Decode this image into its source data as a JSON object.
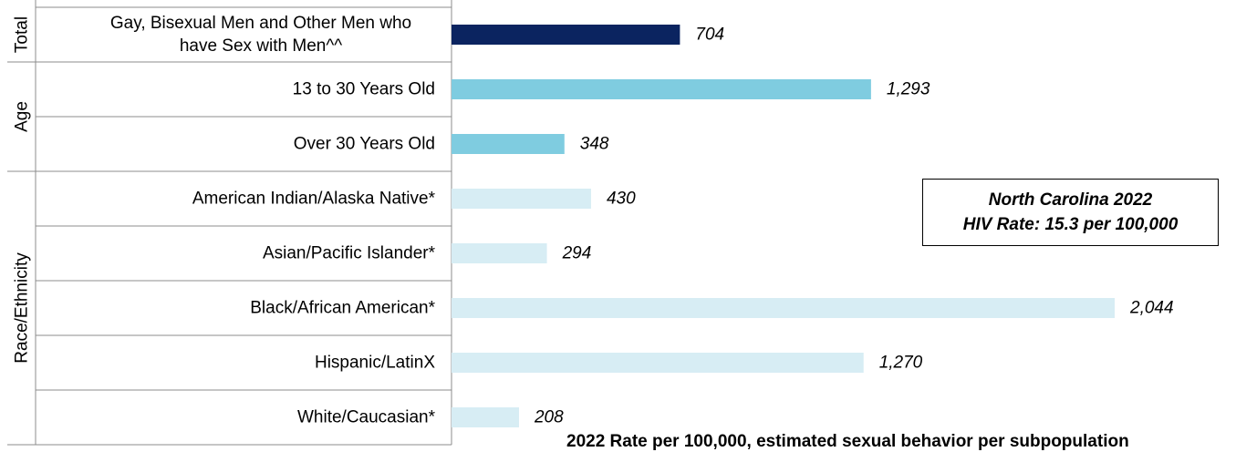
{
  "chart_data": {
    "type": "bar",
    "orientation": "horizontal",
    "title": "",
    "xlabel": "",
    "ylabel": "",
    "xlim": [
      0,
      2300
    ],
    "grid": false,
    "groups": [
      {
        "label": "Total",
        "rows": [
          0
        ]
      },
      {
        "label": "Age",
        "rows": [
          1,
          2
        ]
      },
      {
        "label": "Race/Ethnicity",
        "rows": [
          3,
          4,
          5,
          6,
          7
        ]
      }
    ],
    "categories": [
      [
        "Gay, Bisexual Men and Other Men who",
        "have Sex with Men^^"
      ],
      [
        "13 to 30 Years Old"
      ],
      [
        "Over 30 Years Old"
      ],
      [
        "American Indian/Alaska Native*"
      ],
      [
        "Asian/Pacific Islander*"
      ],
      [
        "Black/African American*"
      ],
      [
        "Hispanic/LatinX"
      ],
      [
        "White/Caucasian*"
      ]
    ],
    "values": [
      704,
      1293,
      348,
      430,
      294,
      2044,
      1270,
      208
    ],
    "value_labels": [
      "704",
      "1,293",
      "348",
      "430",
      "294",
      "2,044",
      "1,270",
      "208"
    ],
    "colors": [
      "#0b2460",
      "#7fcce0",
      "#7fcce0",
      "#d7edf4",
      "#d7edf4",
      "#d7edf4",
      "#d7edf4",
      "#d7edf4"
    ]
  },
  "callout": {
    "line1": "North Carolina 2022",
    "line2": "HIV Rate: 15.3 per 100,000"
  },
  "footnote": "2022 Rate per 100,000, estimated sexual behavior per subpopulation"
}
